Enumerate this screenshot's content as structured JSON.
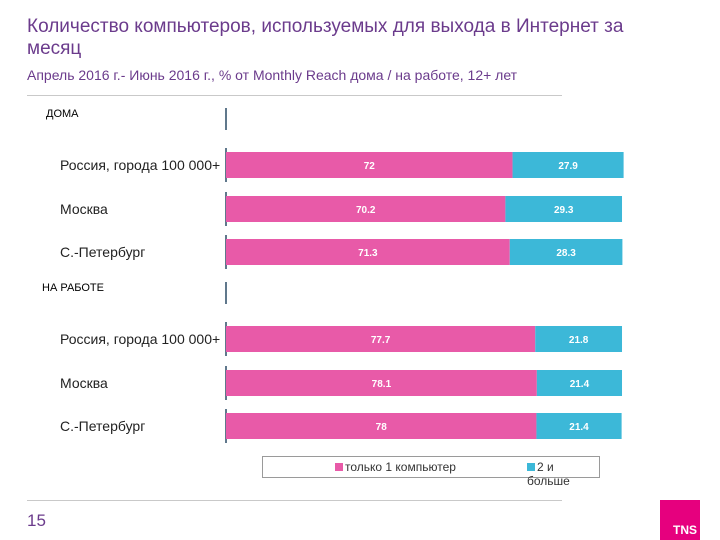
{
  "header": {
    "title": "Количество компьютеров, используемых для выхода в Интернет за месяц",
    "subtitle": "Апрель 2016 г.- Июнь 2016 г., % от Monthly Reach дома / на работе, 12+ лет"
  },
  "footer": {
    "page_number": "15",
    "logo_text": "TNS"
  },
  "colors": {
    "one_pc": "#e85aa8",
    "two_plus": "#3cb8d8",
    "title": "#6b3b8c"
  },
  "chart_data": {
    "type": "bar",
    "orientation": "horizontal",
    "stacked": true,
    "groups": [
      {
        "label": "ДОМА",
        "categories": [
          "Россия, города 100 000+",
          "Москва",
          "С.-Петербург"
        ],
        "series": [
          {
            "name": "только 1 компьютер",
            "values": [
              72,
              70.2,
              71.3
            ]
          },
          {
            "name": "2 и больше",
            "values": [
              27.9,
              29.3,
              28.3
            ]
          }
        ]
      },
      {
        "label": "НА РАБОТЕ",
        "categories": [
          "Россия, города 100 000+",
          "Москва",
          "С.-Петербург"
        ],
        "series": [
          {
            "name": "только 1 компьютер",
            "values": [
              77.7,
              78.1,
              78
            ]
          },
          {
            "name": "2 и больше",
            "values": [
              21.8,
              21.4,
              21.4
            ]
          }
        ]
      }
    ],
    "xlim": [
      0,
      100
    ],
    "legend_position": "bottom",
    "grid": false
  }
}
